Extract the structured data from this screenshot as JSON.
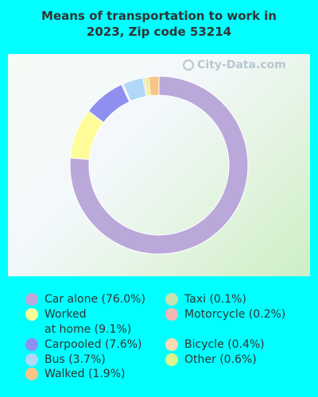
{
  "title_line1": "Means of transportation to work in",
  "title_line2": "2023, Zip code 53214",
  "watermark": "City-Data.com",
  "chart_data": {
    "type": "pie",
    "title": "Means of transportation to work in 2023, Zip code 53214",
    "slices": [
      {
        "label": "Car alone (76.0%)",
        "value": 76.0,
        "color": "#bba8da"
      },
      {
        "label": "Worked at home (9.1%)",
        "value": 9.1,
        "color": "#fdfc99"
      },
      {
        "label": "Carpooled (7.6%)",
        "value": 7.6,
        "color": "#8f8ff0"
      },
      {
        "label": "Bus (3.7%)",
        "value": 3.7,
        "color": "#b1d8f8"
      },
      {
        "label": "Walked (1.9%)",
        "value": 1.9,
        "color": "#f8c587"
      },
      {
        "label": "Taxi (0.1%)",
        "value": 0.1,
        "color": "#c6e2b1"
      },
      {
        "label": "Motorcycle (0.2%)",
        "value": 0.2,
        "color": "#f2b6b5"
      },
      {
        "label": "Bicycle (0.4%)",
        "value": 0.4,
        "color": "#fad9b5"
      },
      {
        "label": "Other (0.6%)",
        "value": 0.6,
        "color": "#dcf48f"
      }
    ]
  },
  "legend": {
    "car_alone": "Car alone (76.0%)",
    "worked_home_1": "Worked",
    "worked_home_2": "at home (9.1%)",
    "carpooled": "Carpooled (7.6%)",
    "bus": "Bus (3.7%)",
    "walked": "Walked (1.9%)",
    "taxi": "Taxi (0.1%)",
    "motorcycle": "Motorcycle (0.2%)",
    "bicycle": "Bicycle (0.4%)",
    "other": "Other (0.6%)"
  }
}
